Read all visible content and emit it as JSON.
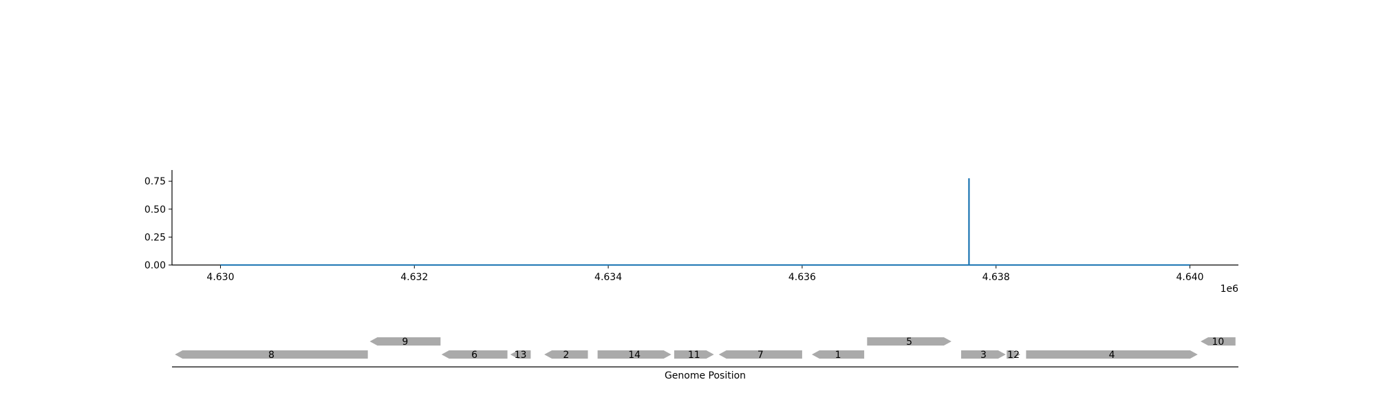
{
  "chart_data": [
    {
      "type": "line",
      "x_tick_labels": [
        "4.630",
        "4.632",
        "4.634",
        "4.636",
        "4.638",
        "4.640"
      ],
      "x_ticks": [
        4630000,
        4632000,
        4634000,
        4636000,
        4638000,
        4640000
      ],
      "x_offset_label": "1e6",
      "y_tick_labels": [
        "0.00",
        "0.25",
        "0.50",
        "0.75"
      ],
      "y_ticks": [
        0.0,
        0.25,
        0.5,
        0.75
      ],
      "xlim": [
        4629500,
        4640500
      ],
      "ylim": [
        0.0,
        0.85
      ],
      "series": [
        {
          "color": "#1f77b4",
          "x": [
            4630000,
            4637720,
            4637720,
            4637722,
            4637722,
            4640000
          ],
          "y": [
            0.0,
            0.0,
            0.77,
            0.77,
            0.0,
            0.0
          ]
        }
      ],
      "grid": false
    },
    {
      "type": "gene-track",
      "xlabel": "Genome Position",
      "xlim": [
        4629500,
        4640500
      ],
      "color": "#aaaaaa",
      "genes": [
        {
          "label": "8",
          "start": 4629530,
          "end": 4631520,
          "strand": "-",
          "row": 0
        },
        {
          "label": "9",
          "start": 4631540,
          "end": 4632270,
          "strand": "-",
          "row": 1
        },
        {
          "label": "6",
          "start": 4632280,
          "end": 4632960,
          "strand": "-",
          "row": 0
        },
        {
          "label": "13",
          "start": 4632990,
          "end": 4633200,
          "strand": "-",
          "row": 0
        },
        {
          "label": "2",
          "start": 4633340,
          "end": 4633790,
          "strand": "-",
          "row": 0
        },
        {
          "label": "14",
          "start": 4633890,
          "end": 4634650,
          "strand": "+",
          "row": 0
        },
        {
          "label": "11",
          "start": 4634680,
          "end": 4635090,
          "strand": "+",
          "row": 0
        },
        {
          "label": "7",
          "start": 4635140,
          "end": 4636000,
          "strand": "-",
          "row": 0
        },
        {
          "label": "1",
          "start": 4636100,
          "end": 4636640,
          "strand": "-",
          "row": 0
        },
        {
          "label": "5",
          "start": 4636670,
          "end": 4637540,
          "strand": "+",
          "row": 1
        },
        {
          "label": "3",
          "start": 4637640,
          "end": 4638100,
          "strand": "+",
          "row": 0
        },
        {
          "label": "12",
          "start": 4638110,
          "end": 4638250,
          "strand": "+",
          "row": 0
        },
        {
          "label": "4",
          "start": 4638310,
          "end": 4640080,
          "strand": "+",
          "row": 0
        },
        {
          "label": "10",
          "start": 4640110,
          "end": 4640470,
          "strand": "-",
          "row": 1
        }
      ]
    }
  ]
}
